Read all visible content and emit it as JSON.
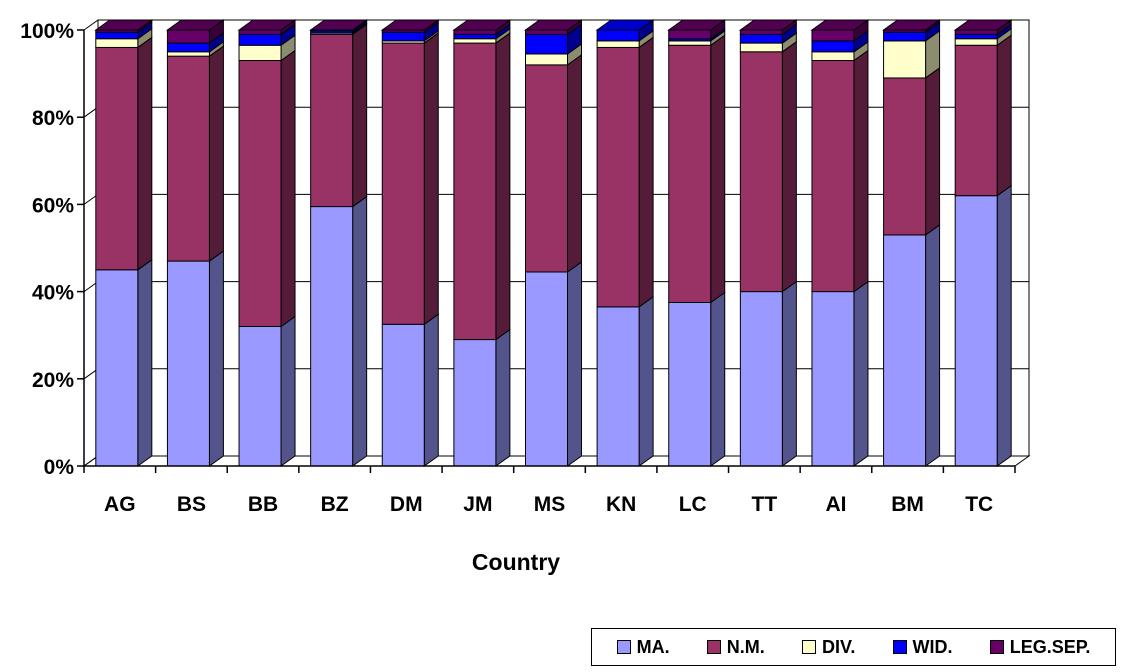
{
  "chart_data": {
    "type": "bar",
    "stacked": "percent",
    "xlabel": "Country",
    "ylabel": "",
    "ylim": [
      0,
      100
    ],
    "yticks": [
      "0%",
      "20%",
      "40%",
      "60%",
      "80%",
      "100%"
    ],
    "grid": true,
    "legend_position": "bottom-right",
    "categories": [
      "AG",
      "BS",
      "BB",
      "BZ",
      "DM",
      "JM",
      "MS",
      "KN",
      "LC",
      "TT",
      "AI",
      "BM",
      "TC"
    ],
    "series": [
      {
        "name": "MA.",
        "color": "#9999ff",
        "values": [
          45,
          47,
          32,
          59.5,
          32.5,
          29,
          44.5,
          36.5,
          37.5,
          40,
          40,
          53,
          62
        ]
      },
      {
        "name": "N.M.",
        "color": "#993366",
        "values": [
          51,
          47,
          61,
          39.5,
          64.5,
          68,
          47.5,
          59.5,
          59,
          55,
          53,
          36,
          34.5
        ]
      },
      {
        "name": "DIV.",
        "color": "#ffffcc",
        "values": [
          2,
          1,
          3.5,
          0.3,
          0.5,
          1,
          2.5,
          1.5,
          1,
          2,
          2,
          8.5,
          1.5
        ]
      },
      {
        "name": "WID.",
        "color": "#0000ff",
        "values": [
          1.5,
          2,
          2.5,
          0.5,
          2,
          1,
          4.5,
          2.5,
          0.5,
          2,
          2.5,
          2,
          1
        ]
      },
      {
        "name": "LEG.SEP.",
        "color": "#660066",
        "values": [
          0.5,
          3,
          1,
          0.2,
          0.5,
          1,
          1,
          0,
          2,
          1,
          2.5,
          0.5,
          1
        ]
      }
    ]
  }
}
